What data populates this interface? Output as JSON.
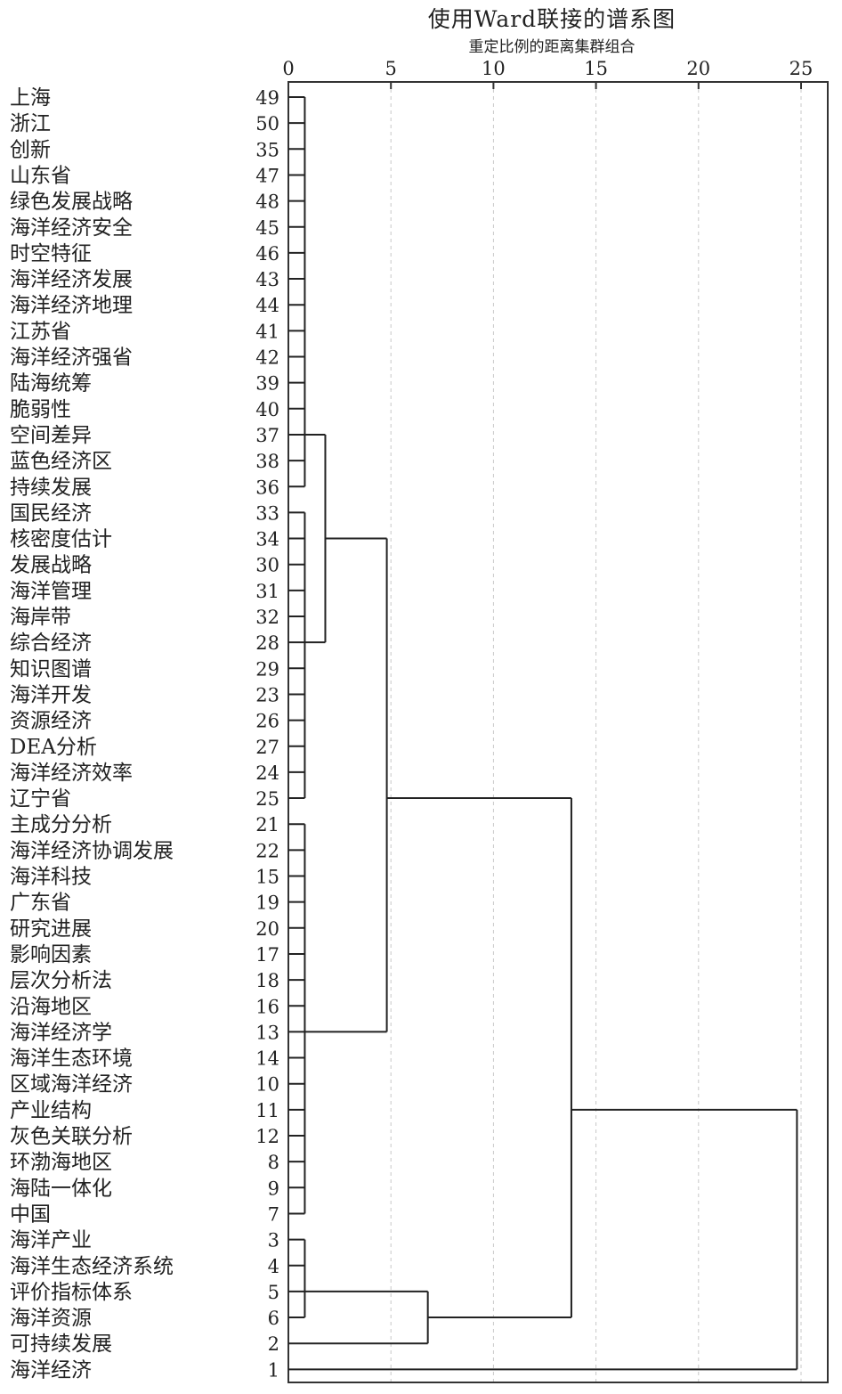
{
  "chart_data": {
    "type": "dendrogram",
    "title": "使用Ward联接的谱系图",
    "subtitle": "重定比例的距离集群组合",
    "x_ticks": [
      0,
      5,
      10,
      15,
      20,
      25
    ],
    "xlim": [
      0,
      25
    ],
    "grid": "vertical dashed",
    "leaves": [
      {
        "name": "上海",
        "id": 49
      },
      {
        "name": "浙江",
        "id": 50
      },
      {
        "name": "创新",
        "id": 35
      },
      {
        "name": "山东省",
        "id": 47
      },
      {
        "name": "绿色发展战略",
        "id": 48
      },
      {
        "name": "海洋经济安全",
        "id": 45
      },
      {
        "name": "时空特征",
        "id": 46
      },
      {
        "name": "海洋经济发展",
        "id": 43
      },
      {
        "name": "海洋经济地理",
        "id": 44
      },
      {
        "name": "江苏省",
        "id": 41
      },
      {
        "name": "海洋经济强省",
        "id": 42
      },
      {
        "name": "陆海统筹",
        "id": 39
      },
      {
        "name": "脆弱性",
        "id": 40
      },
      {
        "name": "空间差异",
        "id": 37
      },
      {
        "name": "蓝色经济区",
        "id": 38
      },
      {
        "name": "持续发展",
        "id": 36
      },
      {
        "name": "国民经济",
        "id": 33
      },
      {
        "name": "核密度估计",
        "id": 34
      },
      {
        "name": "发展战略",
        "id": 30
      },
      {
        "name": "海洋管理",
        "id": 31
      },
      {
        "name": "海岸带",
        "id": 32
      },
      {
        "name": "综合经济",
        "id": 28
      },
      {
        "name": "知识图谱",
        "id": 29
      },
      {
        "name": "海洋开发",
        "id": 23
      },
      {
        "name": "资源经济",
        "id": 26
      },
      {
        "name": "DEA分析",
        "id": 27
      },
      {
        "name": "海洋经济效率",
        "id": 24
      },
      {
        "name": "辽宁省",
        "id": 25
      },
      {
        "name": "主成分分析",
        "id": 21
      },
      {
        "name": "海洋经济协调发展",
        "id": 22
      },
      {
        "name": "海洋科技",
        "id": 15
      },
      {
        "name": "广东省",
        "id": 19
      },
      {
        "name": "研究进展",
        "id": 20
      },
      {
        "name": "影响因素",
        "id": 17
      },
      {
        "name": "层次分析法",
        "id": 18
      },
      {
        "name": "沿海地区",
        "id": 16
      },
      {
        "name": "海洋经济学",
        "id": 13
      },
      {
        "name": "海洋生态环境",
        "id": 14
      },
      {
        "name": "区域海洋经济",
        "id": 10
      },
      {
        "name": "产业结构",
        "id": 11
      },
      {
        "name": "灰色关联分析",
        "id": 12
      },
      {
        "name": "环渤海地区",
        "id": 8
      },
      {
        "name": "海陆一体化",
        "id": 9
      },
      {
        "name": "中国",
        "id": 7
      },
      {
        "name": "海洋产业",
        "id": 3
      },
      {
        "name": "海洋生态经济系统",
        "id": 4
      },
      {
        "name": "评价指标体系",
        "id": 5
      },
      {
        "name": "海洋资源",
        "id": 6
      },
      {
        "name": "可持续发展",
        "id": 2
      },
      {
        "name": "海洋经济",
        "id": 1
      }
    ],
    "merges": [
      {
        "from": 0,
        "to": 15,
        "distance": 0.8,
        "connect": 13
      },
      {
        "from": 16,
        "to": 27,
        "distance": 0.8,
        "connect": 21
      },
      {
        "from": 28,
        "to": 43,
        "distance": 0.8,
        "connect": 36
      },
      {
        "from": 44,
        "to": 47,
        "distance": 0.8,
        "connect": 46
      },
      {
        "parent": "A",
        "left": 13,
        "right": 21,
        "distance": 1.8,
        "connect": 17
      },
      {
        "parent": "B",
        "left": 46,
        "right": 48,
        "distance": 6.8,
        "connect": 47
      },
      {
        "parent": "C",
        "left": 17,
        "right": 36,
        "distance": 4.8,
        "connect": 27
      },
      {
        "parent": "D",
        "left": 27,
        "right": 47,
        "distance": 13.8,
        "connect": 39
      },
      {
        "parent": "E",
        "left": 39,
        "right": 49,
        "distance": 24.8
      }
    ]
  }
}
